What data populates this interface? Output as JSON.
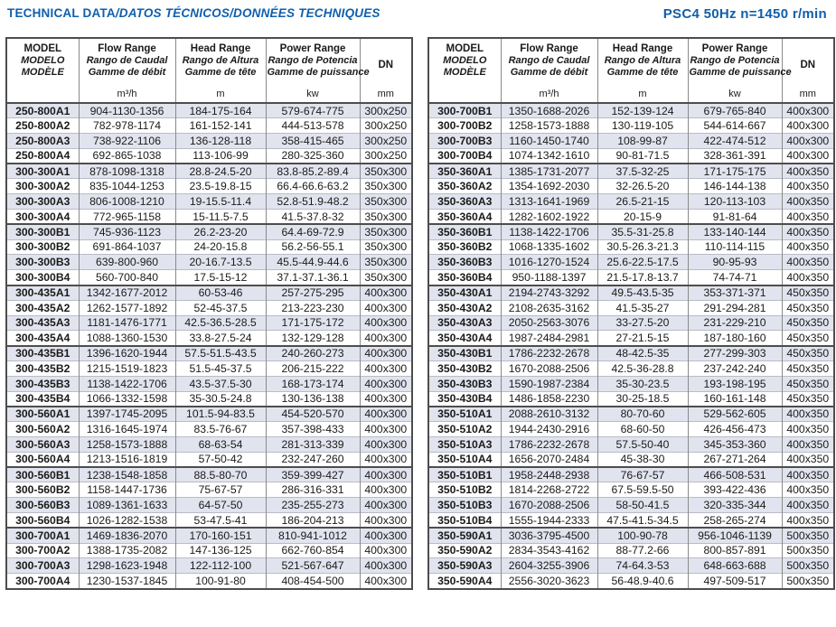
{
  "page": {
    "title_left_main": "TECHNICAL DATA",
    "title_left_rest": "/DATOS TÉCNICOS/DONNÉES TECHNIQUES",
    "title_right": "PSC4 50Hz n=1450 r/min"
  },
  "colors": {
    "accent": "#0e5fad",
    "stripe": "#e1e4ee",
    "border_dark": "#4d4d4d",
    "border_mid": "#8a8a8a",
    "border_light": "#b8bcc6"
  },
  "header": {
    "model": [
      "MODEL",
      "MODELO",
      "MODÈLE"
    ],
    "flow": [
      "Flow Range",
      "Rango de Caudal",
      "Gamme de débit"
    ],
    "head": [
      "Head Range",
      "Rango de Altura",
      "Gamme de tête"
    ],
    "power": [
      "Power Range",
      "Rango de Potencia",
      "Gamme de puissance"
    ],
    "dn": "DN",
    "units": {
      "model": "",
      "flow": "m³/h",
      "head": "m",
      "power": "kw",
      "dn": "mm"
    }
  },
  "tables": {
    "type": "table",
    "columns": [
      "MODEL",
      "Flow Range m³/h",
      "Head Range m",
      "Power Range kw",
      "DN mm"
    ],
    "left": {
      "groups": [
        [
          [
            "250-800A1",
            "904-1130-1356",
            "184-175-164",
            "579-674-775",
            "300x250"
          ],
          [
            "250-800A2",
            "782-978-1174",
            "161-152-141",
            "444-513-578",
            "300x250"
          ],
          [
            "250-800A3",
            "738-922-1106",
            "136-128-118",
            "358-415-465",
            "300x250"
          ],
          [
            "250-800A4",
            "692-865-1038",
            "113-106-99",
            "280-325-360",
            "300x250"
          ]
        ],
        [
          [
            "300-300A1",
            "878-1098-1318",
            "28.8-24.5-20",
            "83.8-85.2-89.4",
            "350x300"
          ],
          [
            "300-300A2",
            "835-1044-1253",
            "23.5-19.8-15",
            "66.4-66.6-63.2",
            "350x300"
          ],
          [
            "300-300A3",
            "806-1008-1210",
            "19-15.5-11.4",
            "52.8-51.9-48.2",
            "350x300"
          ],
          [
            "300-300A4",
            "772-965-1158",
            "15-11.5-7.5",
            "41.5-37.8-32",
            "350x300"
          ]
        ],
        [
          [
            "300-300B1",
            "745-936-1123",
            "26.2-23-20",
            "64.4-69-72.9",
            "350x300"
          ],
          [
            "300-300B2",
            "691-864-1037",
            "24-20-15.8",
            "56.2-56-55.1",
            "350x300"
          ],
          [
            "300-300B3",
            "639-800-960",
            "20-16.7-13.5",
            "45.5-44.9-44.6",
            "350x300"
          ],
          [
            "300-300B4",
            "560-700-840",
            "17.5-15-12",
            "37.1-37.1-36.1",
            "350x300"
          ]
        ],
        [
          [
            "300-435A1",
            "1342-1677-2012",
            "60-53-46",
            "257-275-295",
            "400x300"
          ],
          [
            "300-435A2",
            "1262-1577-1892",
            "52-45-37.5",
            "213-223-230",
            "400x300"
          ],
          [
            "300-435A3",
            "1181-1476-1771",
            "42.5-36.5-28.5",
            "171-175-172",
            "400x300"
          ],
          [
            "300-435A4",
            "1088-1360-1530",
            "33.8-27.5-24",
            "132-129-128",
            "400x300"
          ]
        ],
        [
          [
            "300-435B1",
            "1396-1620-1944",
            "57.5-51.5-43.5",
            "240-260-273",
            "400x300"
          ],
          [
            "300-435B2",
            "1215-1519-1823",
            "51.5-45-37.5",
            "206-215-222",
            "400x300"
          ],
          [
            "300-435B3",
            "1138-1422-1706",
            "43.5-37.5-30",
            "168-173-174",
            "400x300"
          ],
          [
            "300-435B4",
            "1066-1332-1598",
            "35-30.5-24.8",
            "130-136-138",
            "400x300"
          ]
        ],
        [
          [
            "300-560A1",
            "1397-1745-2095",
            "101.5-94-83.5",
            "454-520-570",
            "400x300"
          ],
          [
            "300-560A2",
            "1316-1645-1974",
            "83.5-76-67",
            "357-398-433",
            "400x300"
          ],
          [
            "300-560A3",
            "1258-1573-1888",
            "68-63-54",
            "281-313-339",
            "400x300"
          ],
          [
            "300-560A4",
            "1213-1516-1819",
            "57-50-42",
            "232-247-260",
            "400x300"
          ]
        ],
        [
          [
            "300-560B1",
            "1238-1548-1858",
            "88.5-80-70",
            "359-399-427",
            "400x300"
          ],
          [
            "300-560B2",
            "1158-1447-1736",
            "75-67-57",
            "286-316-331",
            "400x300"
          ],
          [
            "300-560B3",
            "1089-1361-1633",
            "64-57-50",
            "235-255-273",
            "400x300"
          ],
          [
            "300-560B4",
            "1026-1282-1538",
            "53-47.5-41",
            "186-204-213",
            "400x300"
          ]
        ],
        [
          [
            "300-700A1",
            "1469-1836-2070",
            "170-160-151",
            "810-941-1012",
            "400x300"
          ],
          [
            "300-700A2",
            "1388-1735-2082",
            "147-136-125",
            "662-760-854",
            "400x300"
          ],
          [
            "300-700A3",
            "1298-1623-1948",
            "122-112-100",
            "521-567-647",
            "400x300"
          ],
          [
            "300-700A4",
            "1230-1537-1845",
            "100-91-80",
            "408-454-500",
            "400x300"
          ]
        ]
      ]
    },
    "right": {
      "groups": [
        [
          [
            "300-700B1",
            "1350-1688-2026",
            "152-139-124",
            "679-765-840",
            "400x300"
          ],
          [
            "300-700B2",
            "1258-1573-1888",
            "130-119-105",
            "544-614-667",
            "400x300"
          ],
          [
            "300-700B3",
            "1160-1450-1740",
            "108-99-87",
            "422-474-512",
            "400x300"
          ],
          [
            "300-700B4",
            "1074-1342-1610",
            "90-81-71.5",
            "328-361-391",
            "400x300"
          ]
        ],
        [
          [
            "350-360A1",
            "1385-1731-2077",
            "37.5-32-25",
            "171-175-175",
            "400x350"
          ],
          [
            "350-360A2",
            "1354-1692-2030",
            "32-26.5-20",
            "146-144-138",
            "400x350"
          ],
          [
            "350-360A3",
            "1313-1641-1969",
            "26.5-21-15",
            "120-113-103",
            "400x350"
          ],
          [
            "350-360A4",
            "1282-1602-1922",
            "20-15-9",
            "91-81-64",
            "400x350"
          ]
        ],
        [
          [
            "350-360B1",
            "1138-1422-1706",
            "35.5-31-25.8",
            "133-140-144",
            "400x350"
          ],
          [
            "350-360B2",
            "1068-1335-1602",
            "30.5-26.3-21.3",
            "110-114-115",
            "400x350"
          ],
          [
            "350-360B3",
            "1016-1270-1524",
            "25.6-22.5-17.5",
            "90-95-93",
            "400x350"
          ],
          [
            "350-360B4",
            "950-1188-1397",
            "21.5-17.8-13.7",
            "74-74-71",
            "400x350"
          ]
        ],
        [
          [
            "350-430A1",
            "2194-2743-3292",
            "49.5-43.5-35",
            "353-371-371",
            "450x350"
          ],
          [
            "350-430A2",
            "2108-2635-3162",
            "41.5-35-27",
            "291-294-281",
            "450x350"
          ],
          [
            "350-430A3",
            "2050-2563-3076",
            "33-27.5-20",
            "231-229-210",
            "450x350"
          ],
          [
            "350-430A4",
            "1987-2484-2981",
            "27-21.5-15",
            "187-180-160",
            "450x350"
          ]
        ],
        [
          [
            "350-430B1",
            "1786-2232-2678",
            "48-42.5-35",
            "277-299-303",
            "450x350"
          ],
          [
            "350-430B2",
            "1670-2088-2506",
            "42.5-36-28.8",
            "237-242-240",
            "450x350"
          ],
          [
            "350-430B3",
            "1590-1987-2384",
            "35-30-23.5",
            "193-198-195",
            "450x350"
          ],
          [
            "350-430B4",
            "1486-1858-2230",
            "30-25-18.5",
            "160-161-148",
            "450x350"
          ]
        ],
        [
          [
            "350-510A1",
            "2088-2610-3132",
            "80-70-60",
            "529-562-605",
            "400x350"
          ],
          [
            "350-510A2",
            "1944-2430-2916",
            "68-60-50",
            "426-456-473",
            "400x350"
          ],
          [
            "350-510A3",
            "1786-2232-2678",
            "57.5-50-40",
            "345-353-360",
            "400x350"
          ],
          [
            "350-510A4",
            "1656-2070-2484",
            "45-38-30",
            "267-271-264",
            "400x350"
          ]
        ],
        [
          [
            "350-510B1",
            "1958-2448-2938",
            "76-67-57",
            "466-508-531",
            "400x350"
          ],
          [
            "350-510B2",
            "1814-2268-2722",
            "67.5-59.5-50",
            "393-422-436",
            "400x350"
          ],
          [
            "350-510B3",
            "1670-2088-2506",
            "58-50-41.5",
            "320-335-344",
            "400x350"
          ],
          [
            "350-510B4",
            "1555-1944-2333",
            "47.5-41.5-34.5",
            "258-265-274",
            "400x350"
          ]
        ],
        [
          [
            "350-590A1",
            "3036-3795-4500",
            "100-90-78",
            "956-1046-1139",
            "500x350"
          ],
          [
            "350-590A2",
            "2834-3543-4162",
            "88-77.2-66",
            "800-857-891",
            "500x350"
          ],
          [
            "350-590A3",
            "2604-3255-3906",
            "74-64.3-53",
            "648-663-688",
            "500x350"
          ],
          [
            "350-590A4",
            "2556-3020-3623",
            "56-48.9-40.6",
            "497-509-517",
            "500x350"
          ]
        ]
      ]
    }
  }
}
